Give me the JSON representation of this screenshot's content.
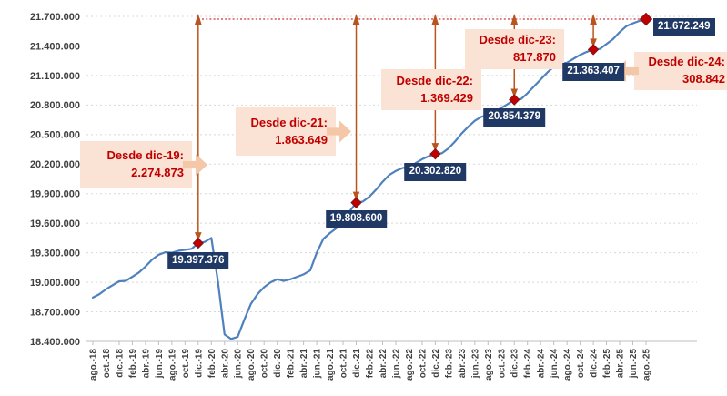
{
  "chart_data": {
    "type": "line",
    "title": "",
    "xlabel": "",
    "ylabel": "",
    "ylim": [
      18400000,
      21700000
    ],
    "ytick_step": 300000,
    "ytick_labels": [
      "18.400.000",
      "18.700.000",
      "19.000.000",
      "19.300.000",
      "19.600.000",
      "19.900.000",
      "20.200.000",
      "20.500.000",
      "20.800.000",
      "21.100.000",
      "21.400.000",
      "21.700.000"
    ],
    "xtick_labels": [
      "ago.-18",
      "oct.-18",
      "dic.-18",
      "feb.-19",
      "abr.-19",
      "jun.-19",
      "ago.-19",
      "oct.-19",
      "dic.-19",
      "feb.-20",
      "abr.-20",
      "jun.-20",
      "ago.-20",
      "oct.-20",
      "dic.-20",
      "feb.-21",
      "abr.-21",
      "jun.-21",
      "ago.-21",
      "oct.-21",
      "dic.-21",
      "feb.-22",
      "abr.-22",
      "jun.-22",
      "ago.-22",
      "oct.-22",
      "dic.-22",
      "feb.-23",
      "abr.-23",
      "jun.-23",
      "ago.-23",
      "oct.-23",
      "dic.-23",
      "feb.-24",
      "abr.-24",
      "jun.-24",
      "ago.-24",
      "oct.-24",
      "dic.-24",
      "feb.-25",
      "abr.-25",
      "jun.-25",
      "ago.-25"
    ],
    "grid": "horizontal-dotted",
    "legend": "none",
    "x": [
      "ago-18",
      "sep-18",
      "oct-18",
      "nov-18",
      "dic-18",
      "ene-19",
      "feb-19",
      "mar-19",
      "abr-19",
      "may-19",
      "jun-19",
      "jul-19",
      "ago-19",
      "sep-19",
      "oct-19",
      "nov-19",
      "dic-19",
      "ene-20",
      "feb-20",
      "mar-20",
      "abr-20",
      "may-20",
      "jun-20",
      "jul-20",
      "ago-20",
      "sep-20",
      "oct-20",
      "nov-20",
      "dic-20",
      "ene-21",
      "feb-21",
      "mar-21",
      "abr-21",
      "may-21",
      "jun-21",
      "jul-21",
      "ago-21",
      "sep-21",
      "oct-21",
      "nov-21",
      "dic-21",
      "ene-22",
      "feb-22",
      "mar-22",
      "abr-22",
      "may-22",
      "jun-22",
      "jul-22",
      "ago-22",
      "sep-22",
      "oct-22",
      "nov-22",
      "dic-22",
      "ene-23",
      "feb-23",
      "mar-23",
      "abr-23",
      "may-23",
      "jun-23",
      "jul-23",
      "ago-23",
      "sep-23",
      "oct-23",
      "nov-23",
      "dic-23",
      "ene-24",
      "feb-24",
      "mar-24",
      "abr-24",
      "may-24",
      "jun-24",
      "jul-24",
      "ago-24",
      "sep-24",
      "oct-24",
      "nov-24",
      "dic-24",
      "ene-25",
      "feb-25",
      "mar-25",
      "abr-25",
      "may-25",
      "jun-25",
      "jul-25",
      "ago-25"
    ],
    "values": [
      18845000,
      18880000,
      18930000,
      18970000,
      19010000,
      19015000,
      19055000,
      19100000,
      19160000,
      19230000,
      19280000,
      19305000,
      19300000,
      19320000,
      19330000,
      19340000,
      19397376,
      19410000,
      19450000,
      19010000,
      18470000,
      18425000,
      18445000,
      18620000,
      18780000,
      18880000,
      18950000,
      19000000,
      19030000,
      19015000,
      19030000,
      19055000,
      19080000,
      19120000,
      19300000,
      19440000,
      19500000,
      19550000,
      19620000,
      19720000,
      19808600,
      19820000,
      19870000,
      19940000,
      20020000,
      20090000,
      20130000,
      20160000,
      20170000,
      20210000,
      20250000,
      20280000,
      20302820,
      20310000,
      20360000,
      20430000,
      20510000,
      20580000,
      20640000,
      20680000,
      20700000,
      20730000,
      20770000,
      20810000,
      20854379,
      20860000,
      20920000,
      20990000,
      21060000,
      21130000,
      21190000,
      21220000,
      21230000,
      21270000,
      21310000,
      21340000,
      21363407,
      21370000,
      21420000,
      21470000,
      21540000,
      21600000,
      21630000,
      21655000,
      21672249
    ],
    "markers": [
      {
        "month": "dic-19",
        "index": 16,
        "value": 19397376,
        "label": "19.397.376"
      },
      {
        "month": "dic-21",
        "index": 40,
        "value": 19808600,
        "label": "19.808.600"
      },
      {
        "month": "dic-22",
        "index": 52,
        "value": 20302820,
        "label": "20.302.820"
      },
      {
        "month": "dic-23",
        "index": 64,
        "value": 20854379,
        "label": "20.854.379"
      },
      {
        "month": "dic-24",
        "index": 76,
        "value": 21363407,
        "label": "21.363.407"
      },
      {
        "month": "ago-25",
        "index": 84,
        "value": 21672249,
        "label": "21.672.249"
      }
    ],
    "callouts": [
      {
        "title": "Desde dic-19:",
        "value": "2.274.873",
        "marker_index": 16
      },
      {
        "title": "Desde dic-21:",
        "value": "1.863.649",
        "marker_index": 40
      },
      {
        "title": "Desde dic-22:",
        "value": "1.369.429",
        "marker_index": 52
      },
      {
        "title": "Desde dic-23:",
        "value": "817.870",
        "marker_index": 64
      },
      {
        "title": "Desde dic-24:",
        "value": "308.842",
        "marker_index": 76
      }
    ],
    "colors": {
      "line": "#4E81BD",
      "marker_fill": "#C00000",
      "marker_edge": "#7F1416",
      "data_label_bg": "#1F3864",
      "data_label_text": "#FFFFFF",
      "callout_bg": "#FAE3D4",
      "callout_arrow": "#F3C7A7",
      "callout_text": "#C00000",
      "vertical_arrow": "#BA541F",
      "dotted_reference_line": "#C00000",
      "grid": "#D8D8D8",
      "axis": "#BFBFBF",
      "axis_text": "#404040"
    }
  }
}
